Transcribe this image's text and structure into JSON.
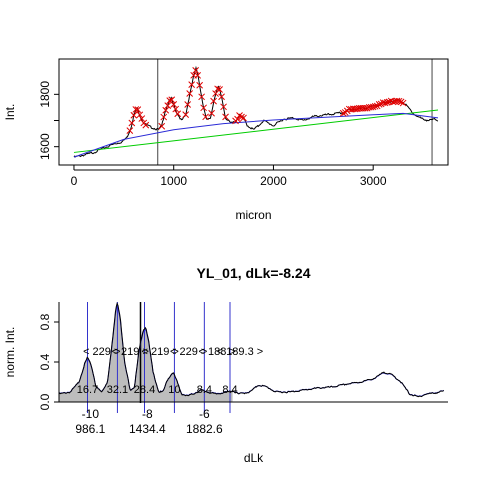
{
  "chart_data": [
    {
      "type": "line",
      "title": "",
      "xlabel": "micron",
      "ylabel": "Int.",
      "xlim": [
        -150,
        3750
      ],
      "ylim": [
        1530,
        1935
      ],
      "x_ticks": [
        0,
        1000,
        2000,
        3000
      ],
      "y_ticks": [
        1600,
        1700,
        1800
      ],
      "y_tick_labels": [
        "1600",
        "",
        "1800"
      ],
      "vertical_lines": [
        840,
        3590
      ],
      "baseline_fits": [
        {
          "color": "#00cc00",
          "x": [
            0,
            3650
          ],
          "a": 1578,
          "b": 0.0444
        },
        {
          "color": "#2b2bd6",
          "x": [
            0,
            3650
          ],
          "curve": [
            [
              0,
              1560
            ],
            [
              500,
              1628
            ],
            [
              1000,
              1665
            ],
            [
              1500,
              1688
            ],
            [
              2000,
              1702
            ],
            [
              2500,
              1712
            ],
            [
              3000,
              1722
            ],
            [
              3300,
              1727
            ],
            [
              3650,
              1710
            ]
          ]
        }
      ],
      "profile": [
        [
          0,
          1560
        ],
        [
          100,
          1568
        ],
        [
          200,
          1578
        ],
        [
          300,
          1595
        ],
        [
          400,
          1610
        ],
        [
          480,
          1618
        ],
        [
          530,
          1635
        ],
        [
          570,
          1670
        ],
        [
          600,
          1720
        ],
        [
          630,
          1750
        ],
        [
          660,
          1720
        ],
        [
          700,
          1690
        ],
        [
          740,
          1680
        ],
        [
          800,
          1670
        ],
        [
          850,
          1665
        ],
        [
          880,
          1680
        ],
        [
          910,
          1730
        ],
        [
          950,
          1770
        ],
        [
          975,
          1785
        ],
        [
          1000,
          1760
        ],
        [
          1030,
          1730
        ],
        [
          1080,
          1700
        ],
        [
          1120,
          1720
        ],
        [
          1160,
          1800
        ],
        [
          1200,
          1870
        ],
        [
          1225,
          1900
        ],
        [
          1250,
          1860
        ],
        [
          1290,
          1770
        ],
        [
          1330,
          1700
        ],
        [
          1370,
          1710
        ],
        [
          1410,
          1790
        ],
        [
          1450,
          1830
        ],
        [
          1480,
          1790
        ],
        [
          1520,
          1710
        ],
        [
          1570,
          1690
        ],
        [
          1620,
          1695
        ],
        [
          1660,
          1720
        ],
        [
          1700,
          1710
        ],
        [
          1740,
          1680
        ],
        [
          1800,
          1665
        ],
        [
          1850,
          1680
        ],
        [
          1900,
          1700
        ],
        [
          1950,
          1690
        ],
        [
          2000,
          1680
        ],
        [
          2100,
          1705
        ],
        [
          2200,
          1710
        ],
        [
          2300,
          1700
        ],
        [
          2400,
          1715
        ],
        [
          2500,
          1720
        ],
        [
          2600,
          1725
        ],
        [
          2700,
          1730
        ],
        [
          2750,
          1740
        ],
        [
          2850,
          1745
        ],
        [
          2950,
          1750
        ],
        [
          3050,
          1760
        ],
        [
          3150,
          1770
        ],
        [
          3250,
          1778
        ],
        [
          3300,
          1770
        ],
        [
          3350,
          1750
        ],
        [
          3420,
          1720
        ],
        [
          3500,
          1705
        ],
        [
          3560,
          1700
        ],
        [
          3620,
          1705
        ],
        [
          3650,
          1700
        ]
      ],
      "marked_regions": [
        [
          560,
          720
        ],
        [
          880,
          1040
        ],
        [
          1120,
          1320
        ],
        [
          1380,
          1520
        ],
        [
          1620,
          1700
        ],
        [
          2700,
          3300
        ]
      ]
    },
    {
      "type": "area",
      "title": "YL_01, dLk=-8.24",
      "xlabel": "dLk",
      "ylabel": "norm. Int.",
      "xlim": [
        -11.1,
        2.55
      ],
      "ylim": [
        -0.01,
        1.0
      ],
      "x_ticks": [
        -10,
        -8,
        -6
      ],
      "y_ticks": [
        0.0,
        0.4,
        0.8
      ],
      "secondary_x_labels": [
        {
          "x": -10,
          "label": "986.1"
        },
        {
          "x": -8,
          "label": "1434.4"
        },
        {
          "x": -6,
          "label": "1882.6"
        }
      ],
      "topoisomer_lines": [
        -10.1,
        -9.05,
        -8.1,
        -7.05,
        -6.0,
        -5.1
      ],
      "center_line": -8.24,
      "spacing_labels": [
        {
          "x": -9.6,
          "label": "< 229 >"
        },
        {
          "x": -8.6,
          "label": "< 219 >"
        },
        {
          "x": -7.55,
          "label": "< 219 >"
        },
        {
          "x": -6.55,
          "label": "< 229 >"
        },
        {
          "x": -5.55,
          "label": "< 188 >"
        },
        {
          "x": -4.75,
          "label": "< 189.3 >"
        }
      ],
      "peak_labels": [
        {
          "x": -10.1,
          "label": "16.7"
        },
        {
          "x": -9.05,
          "label": "32.1"
        },
        {
          "x": -8.1,
          "label": "28.4"
        },
        {
          "x": -7.05,
          "label": "10"
        },
        {
          "x": -6.0,
          "label": "8.4"
        },
        {
          "x": -5.1,
          "label": "8.4"
        }
      ],
      "profile": [
        [
          -11.1,
          0.08
        ],
        [
          -10.7,
          0.1
        ],
        [
          -10.4,
          0.2
        ],
        [
          -10.2,
          0.38
        ],
        [
          -10.1,
          0.45
        ],
        [
          -9.95,
          0.35
        ],
        [
          -9.8,
          0.15
        ],
        [
          -9.6,
          0.1
        ],
        [
          -9.4,
          0.2
        ],
        [
          -9.25,
          0.55
        ],
        [
          -9.1,
          0.95
        ],
        [
          -9.05,
          1.0
        ],
        [
          -8.95,
          0.85
        ],
        [
          -8.8,
          0.4
        ],
        [
          -8.6,
          0.12
        ],
        [
          -8.45,
          0.15
        ],
        [
          -8.3,
          0.5
        ],
        [
          -8.15,
          0.72
        ],
        [
          -8.05,
          0.75
        ],
        [
          -7.95,
          0.6
        ],
        [
          -7.8,
          0.3
        ],
        [
          -7.6,
          0.1
        ],
        [
          -7.45,
          0.1
        ],
        [
          -7.3,
          0.22
        ],
        [
          -7.1,
          0.3
        ],
        [
          -6.95,
          0.2
        ],
        [
          -6.8,
          0.08
        ],
        [
          -6.6,
          0.06
        ],
        [
          -6.4,
          0.08
        ],
        [
          -6.1,
          0.12
        ],
        [
          -5.9,
          0.1
        ],
        [
          -5.6,
          0.08
        ],
        [
          -5.2,
          0.1
        ],
        [
          -5.0,
          0.11
        ],
        [
          -4.8,
          0.08
        ],
        [
          -4.4,
          0.1
        ],
        [
          -4.1,
          0.17
        ],
        [
          -3.8,
          0.15
        ],
        [
          -3.5,
          0.1
        ],
        [
          -3.0,
          0.1
        ],
        [
          -2.5,
          0.12
        ],
        [
          -2.0,
          0.14
        ],
        [
          -1.5,
          0.15
        ],
        [
          -1.0,
          0.18
        ],
        [
          -0.5,
          0.2
        ],
        [
          0.0,
          0.24
        ],
        [
          0.3,
          0.3
        ],
        [
          0.6,
          0.27
        ],
        [
          0.9,
          0.2
        ],
        [
          1.2,
          0.08
        ],
        [
          1.5,
          0.05
        ],
        [
          1.8,
          0.08
        ],
        [
          2.1,
          0.09
        ],
        [
          2.4,
          0.11
        ]
      ],
      "fill_range": [
        -11.1,
        -5.0
      ]
    }
  ]
}
